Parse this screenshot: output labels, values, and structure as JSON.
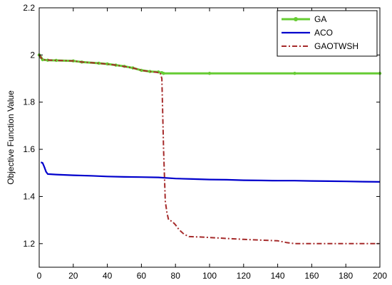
{
  "chart_data": {
    "type": "line",
    "title": "",
    "xlabel": "",
    "ylabel": "Objective Function Value",
    "xlim": [
      0,
      200
    ],
    "ylim": [
      1.1,
      2.2
    ],
    "x_ticks": [
      0,
      20,
      40,
      60,
      80,
      100,
      120,
      140,
      160,
      180,
      200
    ],
    "y_ticks": [
      1.2,
      1.4,
      1.6,
      1.8,
      2.0,
      2.2
    ],
    "x_tick_labels": [
      "0",
      "20",
      "40",
      "60",
      "80",
      "100",
      "120",
      "140",
      "160",
      "180",
      "200"
    ],
    "y_tick_labels": [
      "1.2",
      "1.4",
      "1.6",
      "1.8",
      "2",
      "2.2"
    ],
    "grid": false,
    "legend_position": "top-right",
    "series": [
      {
        "name": "GA",
        "color": "#66cc33",
        "style": "solid-marker",
        "points": [
          [
            0,
            2.0
          ],
          [
            1,
            1.99
          ],
          [
            2,
            1.98
          ],
          [
            5,
            1.978
          ],
          [
            10,
            1.977
          ],
          [
            20,
            1.975
          ],
          [
            25,
            1.97
          ],
          [
            35,
            1.965
          ],
          [
            40,
            1.962
          ],
          [
            45,
            1.957
          ],
          [
            50,
            1.952
          ],
          [
            55,
            1.945
          ],
          [
            60,
            1.935
          ],
          [
            65,
            1.93
          ],
          [
            70,
            1.928
          ],
          [
            72,
            1.925
          ],
          [
            73,
            1.922
          ],
          [
            100,
            1.922
          ],
          [
            150,
            1.922
          ],
          [
            200,
            1.922
          ]
        ]
      },
      {
        "name": "ACO",
        "color": "#0000cc",
        "style": "solid",
        "points": [
          [
            1,
            1.545
          ],
          [
            2,
            1.542
          ],
          [
            3,
            1.525
          ],
          [
            4,
            1.505
          ],
          [
            5,
            1.495
          ],
          [
            10,
            1.493
          ],
          [
            20,
            1.49
          ],
          [
            30,
            1.488
          ],
          [
            40,
            1.485
          ],
          [
            50,
            1.483
          ],
          [
            60,
            1.482
          ],
          [
            70,
            1.481
          ],
          [
            80,
            1.476
          ],
          [
            90,
            1.474
          ],
          [
            100,
            1.472
          ],
          [
            110,
            1.471
          ],
          [
            120,
            1.469
          ],
          [
            130,
            1.468
          ],
          [
            140,
            1.467
          ],
          [
            150,
            1.467
          ],
          [
            160,
            1.466
          ],
          [
            170,
            1.465
          ],
          [
            180,
            1.464
          ],
          [
            190,
            1.463
          ],
          [
            200,
            1.462
          ]
        ]
      },
      {
        "name": "GAOTWSH",
        "color": "#a52a2a",
        "style": "dash-dot",
        "points": [
          [
            0,
            2.0
          ],
          [
            2,
            1.98
          ],
          [
            10,
            1.977
          ],
          [
            20,
            1.975
          ],
          [
            25,
            1.97
          ],
          [
            35,
            1.965
          ],
          [
            45,
            1.957
          ],
          [
            55,
            1.945
          ],
          [
            60,
            1.935
          ],
          [
            65,
            1.93
          ],
          [
            71,
            1.925
          ],
          [
            72,
            1.9
          ],
          [
            73,
            1.6
          ],
          [
            74,
            1.38
          ],
          [
            75,
            1.33
          ],
          [
            76,
            1.3
          ],
          [
            78,
            1.295
          ],
          [
            80,
            1.28
          ],
          [
            82,
            1.26
          ],
          [
            85,
            1.24
          ],
          [
            88,
            1.23
          ],
          [
            95,
            1.228
          ],
          [
            110,
            1.222
          ],
          [
            120,
            1.218
          ],
          [
            140,
            1.212
          ],
          [
            145,
            1.205
          ],
          [
            150,
            1.2
          ],
          [
            200,
            1.2
          ]
        ]
      }
    ]
  }
}
